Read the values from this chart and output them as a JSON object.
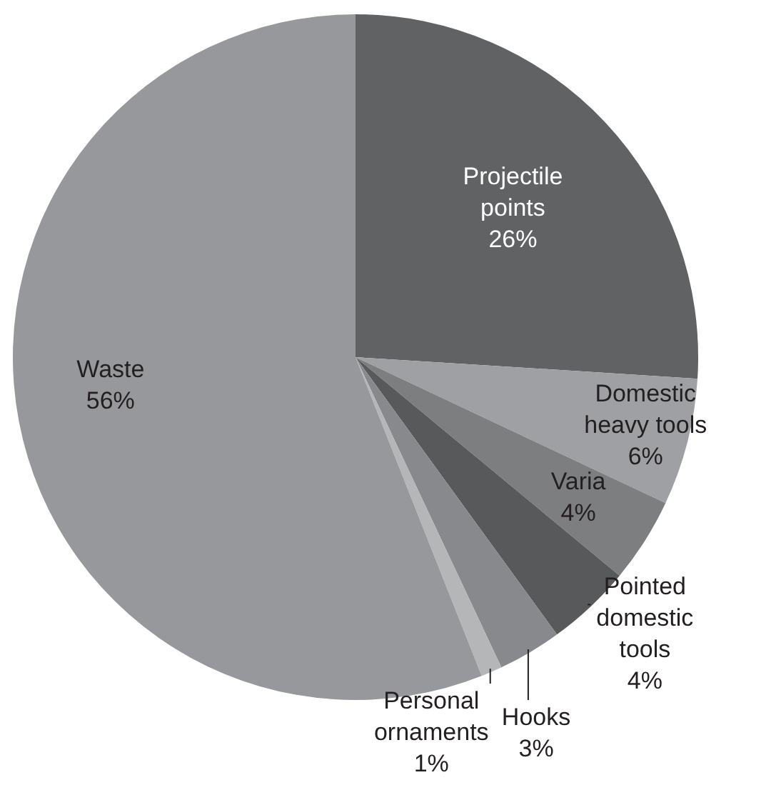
{
  "chart_data": {
    "type": "pie",
    "categories": [
      "Projectile points",
      "Domestic heavy tools",
      "Varia",
      "Pointed domestic tools",
      "Hooks",
      "Personal ornaments",
      "Waste"
    ],
    "values": [
      26,
      6,
      4,
      4,
      3,
      1,
      56
    ],
    "colors": [
      "#616264",
      "#9fa0a3",
      "#7d7e80",
      "#58595b",
      "#88898c",
      "#b5b6b8",
      "#97989b"
    ],
    "value_labels": [
      "26%",
      "6%",
      "4%",
      "4%",
      "3%",
      "1%",
      "56%"
    ],
    "legend": false
  }
}
